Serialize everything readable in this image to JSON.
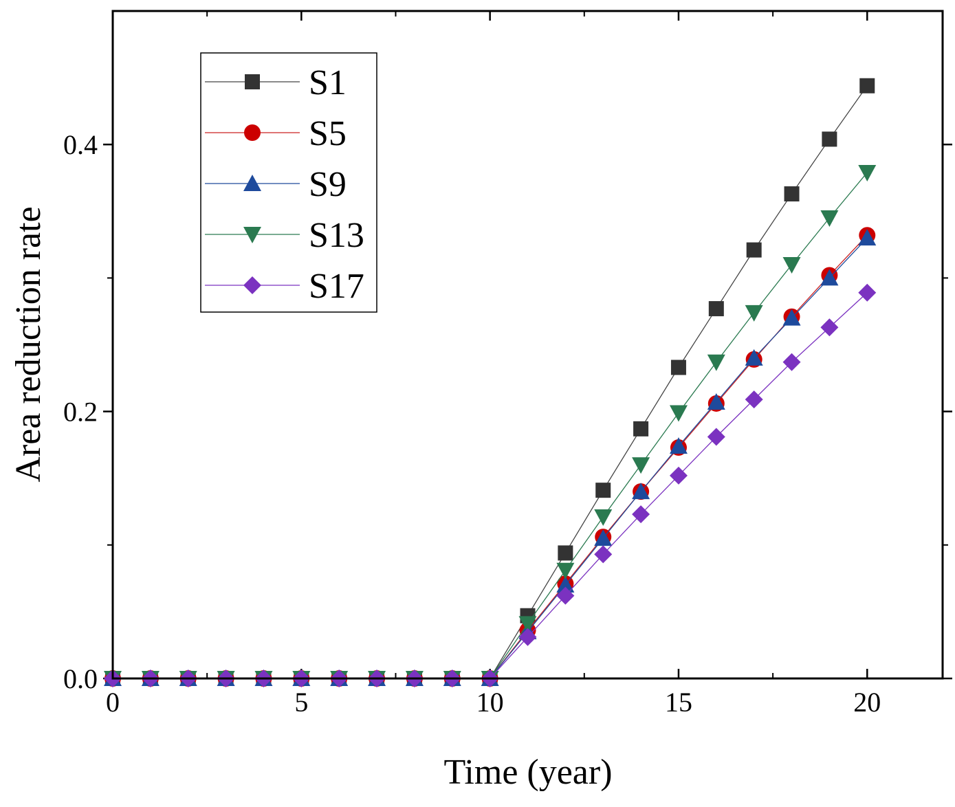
{
  "chart_data": {
    "type": "line",
    "title": "",
    "xlabel": "Time (year)",
    "ylabel": "Area reduction rate",
    "xlim": [
      0,
      22
    ],
    "ylim": [
      0,
      0.5
    ],
    "xticks": [
      0,
      5,
      10,
      15,
      20
    ],
    "xtick_labels": [
      "0",
      "5",
      "10",
      "15",
      "20"
    ],
    "yticks": [
      0.0,
      0.2,
      0.4
    ],
    "ytick_labels": [
      "0.0",
      "0.2",
      "0.4"
    ],
    "grid": false,
    "legend_position": "top-left",
    "x": [
      0,
      1,
      2,
      3,
      4,
      5,
      6,
      7,
      8,
      9,
      10,
      11,
      12,
      13,
      14,
      15,
      16,
      17,
      18,
      19,
      20
    ],
    "series": [
      {
        "name": "S1",
        "marker": "square",
        "color": "#333333",
        "line_color": "#444444",
        "values": [
          0,
          0,
          0,
          0,
          0,
          0,
          0,
          0,
          0,
          0,
          0,
          0.047,
          0.094,
          0.141,
          0.187,
          0.233,
          0.277,
          0.321,
          0.363,
          0.404,
          0.444
        ]
      },
      {
        "name": "S5",
        "marker": "circle",
        "color": "#cc0000",
        "line_color": "#cc2222",
        "values": [
          0,
          0,
          0,
          0,
          0,
          0,
          0,
          0,
          0,
          0,
          0,
          0.036,
          0.071,
          0.106,
          0.14,
          0.173,
          0.206,
          0.239,
          0.271,
          0.302,
          0.332
        ]
      },
      {
        "name": "S9",
        "marker": "triangle-up",
        "color": "#1e4a9c",
        "line_color": "#1e4a9c",
        "values": [
          0,
          0,
          0,
          0,
          0,
          0,
          0,
          0,
          0,
          0,
          0,
          0.035,
          0.07,
          0.105,
          0.14,
          0.174,
          0.207,
          0.24,
          0.27,
          0.3,
          0.33
        ]
      },
      {
        "name": "S13",
        "marker": "triangle-down",
        "color": "#2a7a50",
        "line_color": "#2a7a50",
        "values": [
          0,
          0,
          0,
          0,
          0,
          0,
          0,
          0,
          0,
          0,
          0,
          0.041,
          0.081,
          0.121,
          0.16,
          0.199,
          0.237,
          0.274,
          0.31,
          0.345,
          0.379
        ]
      },
      {
        "name": "S17",
        "marker": "diamond",
        "color": "#7b32c0",
        "line_color": "#7b32c0",
        "values": [
          0,
          0,
          0,
          0,
          0,
          0,
          0,
          0,
          0,
          0,
          0,
          0.031,
          0.062,
          0.093,
          0.123,
          0.152,
          0.181,
          0.209,
          0.237,
          0.263,
          0.289
        ]
      }
    ]
  }
}
